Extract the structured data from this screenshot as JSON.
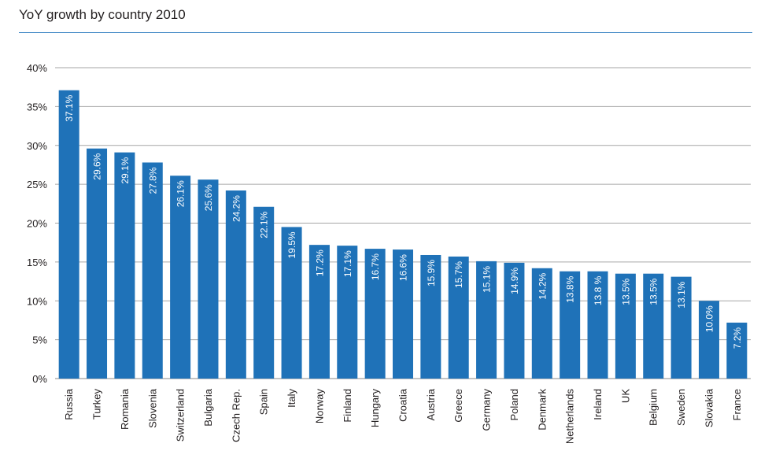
{
  "chart_data": {
    "type": "bar",
    "title": "YoY growth by country 2010",
    "xlabel": "",
    "ylabel": "",
    "ylim": [
      0,
      40
    ],
    "yticks": [
      "0%",
      "5%",
      "10%",
      "15%",
      "20%",
      "25%",
      "30%",
      "35%",
      "40%"
    ],
    "grid": true,
    "bar_color": "#1f72b8",
    "categories": [
      "Russia",
      "Turkey",
      "Romania",
      "Slovenia",
      "Switzerland",
      "Bulgaria",
      "Czech Rep.",
      "Spain",
      "Italy",
      "Norway",
      "Finland",
      "Hungary",
      "Croatia",
      "Austria",
      "Greece",
      "Germany",
      "Poland",
      "Denmark",
      "Netherlands",
      "Ireland",
      "UK",
      "Belgium",
      "Sweden",
      "Slovakia",
      "France"
    ],
    "values": [
      37.1,
      29.6,
      29.1,
      27.8,
      26.1,
      25.6,
      24.2,
      22.1,
      19.5,
      17.2,
      17.1,
      16.7,
      16.6,
      15.9,
      15.7,
      15.1,
      14.9,
      14.2,
      13.8,
      13.8,
      13.5,
      13.5,
      13.1,
      10.0,
      7.2
    ],
    "value_labels": [
      "37.1%",
      "29.6%",
      "29.1%",
      "27.8%",
      "26.1%",
      "25.6%",
      "24.2%",
      "22.1%",
      "19.5%",
      "17.2%",
      "17.1%",
      "16.7%",
      "16.6%",
      "15.9%",
      "15.7%",
      "15.1%",
      "14.9%",
      "14.2%",
      "13.8%",
      "13.8 %",
      "13.5%",
      "13.5%",
      "13.1%",
      "10.0%",
      "7.2%"
    ]
  }
}
